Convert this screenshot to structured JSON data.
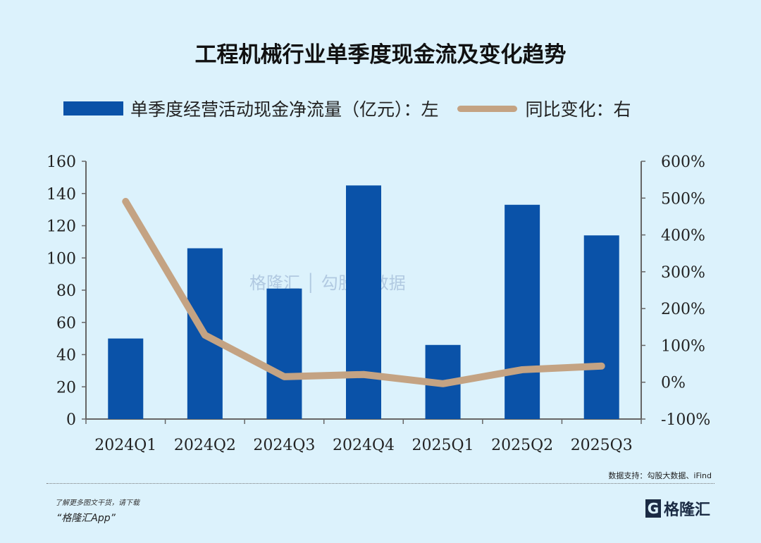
{
  "chart_data": {
    "type": "bar+line",
    "title": "工程机械行业单季度现金流及变化趋势",
    "categories": [
      "2024Q1",
      "2024Q2",
      "2024Q3",
      "2024Q4",
      "2025Q1",
      "2025Q2",
      "2025Q3"
    ],
    "series": [
      {
        "name": "单季度经营活动现金净流量（亿元）：左",
        "type": "bar",
        "axis": "left",
        "color": "#0a52a8",
        "values": [
          50,
          106,
          81,
          145,
          46,
          133,
          114
        ]
      },
      {
        "name": "同比变化：右",
        "type": "line",
        "axis": "right",
        "color": "#c4a383",
        "values": [
          491,
          128,
          15,
          21,
          -4,
          34,
          44
        ]
      }
    ],
    "left_axis": {
      "ylim": [
        0,
        160
      ],
      "ticks": [
        "0",
        "20",
        "40",
        "60",
        "80",
        "100",
        "120",
        "140",
        "160"
      ]
    },
    "right_axis": {
      "ylim": [
        -100,
        600
      ],
      "unit": "%",
      "ticks": [
        "-100%",
        "0%",
        "100%",
        "200%",
        "300%",
        "400%",
        "500%",
        "600%"
      ]
    },
    "grid": false,
    "legend_placement": "top"
  },
  "watermark": "格隆汇 | 勾股大数据 gogudata.com",
  "footer": {
    "source": "数据支持：勾股大数据、iFind",
    "promo_line1": "了解更多图文干货，请下载",
    "promo_line2": "“格隆汇App”",
    "logo": "格隆汇"
  }
}
